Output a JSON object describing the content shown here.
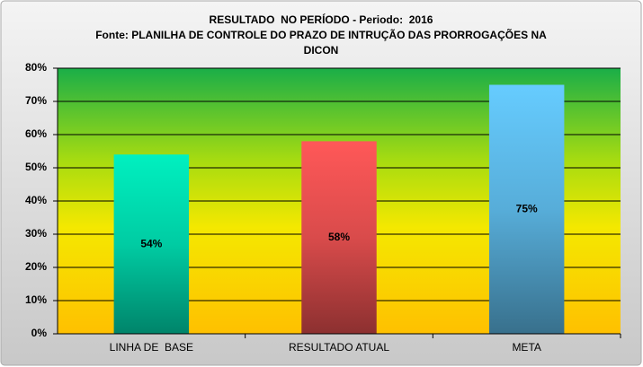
{
  "chart_data": {
    "type": "bar",
    "title": "RESULTADO  NO PERÍODO - Periodo:  2016",
    "subtitle": "Fonte: PLANILHA DE CONTROLE DO PRAZO DE INTRUÇÃO DAS PRORROGAÇÕES NA DICON",
    "categories": [
      "LINHA DE  BASE",
      "RESULTADO ATUAL",
      "META"
    ],
    "values": [
      54,
      58,
      75
    ],
    "value_labels": [
      "54%",
      "58%",
      "75%"
    ],
    "colors": [
      "#00f0c0",
      "#ff5858",
      "#66ccff"
    ],
    "ylim": [
      0,
      80
    ],
    "yticks": [
      {
        "value": 0,
        "label": "0%"
      },
      {
        "value": 10,
        "label": "10%"
      },
      {
        "value": 20,
        "label": "20%"
      },
      {
        "value": 30,
        "label": "30%"
      },
      {
        "value": 40,
        "label": "40%"
      },
      {
        "value": 50,
        "label": "50%"
      },
      {
        "value": 60,
        "label": "60%"
      },
      {
        "value": 70,
        "label": "70%"
      },
      {
        "value": 80,
        "label": "80%"
      }
    ],
    "grid": true
  }
}
